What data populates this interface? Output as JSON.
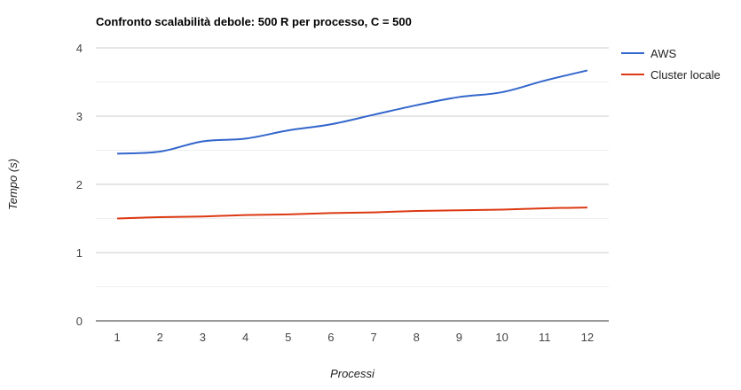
{
  "chart_data": {
    "type": "line",
    "title": "Confronto scalabilità debole: 500 R per processo, C = 500",
    "xlabel": "Processi",
    "ylabel": "Tempo (s)",
    "x": [
      1,
      2,
      3,
      4,
      5,
      6,
      7,
      8,
      9,
      10,
      11,
      12
    ],
    "ylim": [
      0,
      4
    ],
    "yticks": [
      0,
      1,
      2,
      3,
      4
    ],
    "grid": true,
    "minor_grid": true,
    "legend_position": "right",
    "series": [
      {
        "name": "AWS",
        "color": "#3366cc",
        "values": [
          2.45,
          2.48,
          2.63,
          2.67,
          2.79,
          2.88,
          3.02,
          3.16,
          3.28,
          3.35,
          3.52,
          3.67
        ]
      },
      {
        "name": "Cluster locale",
        "color": "#dc3912",
        "values": [
          1.5,
          1.52,
          1.53,
          1.55,
          1.56,
          1.58,
          1.59,
          1.61,
          1.62,
          1.63,
          1.65,
          1.66
        ]
      }
    ]
  }
}
